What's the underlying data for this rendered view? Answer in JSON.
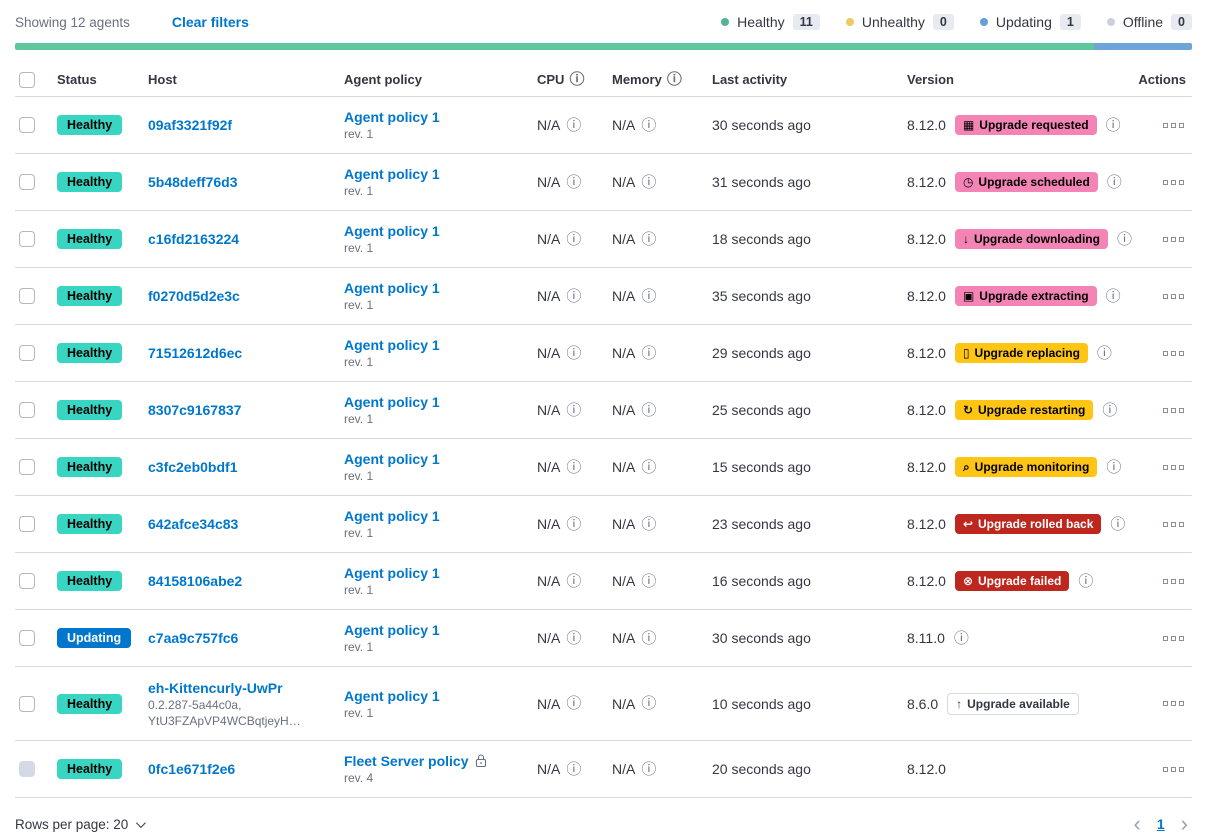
{
  "colors": {
    "accent": "#F584B6",
    "warning": "#FEC514",
    "danger": "#BD271E",
    "healthy": "#38D6C2",
    "updating": "#0077CC",
    "link": "#0077CC"
  },
  "toolbar": {
    "showing": "Showing 12 agents",
    "clear_filters": "Clear filters"
  },
  "legend": {
    "items": [
      {
        "label": "Healthy",
        "count": "11",
        "color": "#54B399"
      },
      {
        "label": "Unhealthy",
        "count": "0",
        "color": "#EDC964"
      },
      {
        "label": "Updating",
        "count": "1",
        "color": "#64A0D8"
      },
      {
        "label": "Offline",
        "count": "0",
        "color": "#CBD1DB"
      }
    ]
  },
  "health_bar": {
    "segments": [
      {
        "status": "healthy",
        "color": "#5EC79C",
        "percent": 91.7
      },
      {
        "status": "updating",
        "color": "#6EA5D8",
        "percent": 8.3
      }
    ]
  },
  "table": {
    "headers": [
      {
        "label": "",
        "type": "checkbox"
      },
      {
        "label": "Status"
      },
      {
        "label": "Host"
      },
      {
        "label": "Agent policy"
      },
      {
        "label": "CPU",
        "info": true
      },
      {
        "label": "Memory",
        "info": true
      },
      {
        "label": "Last activity"
      },
      {
        "label": "Version"
      },
      {
        "label": "Actions",
        "align": "right"
      }
    ],
    "rows": [
      {
        "status": "Healthy",
        "status_variant": "healthy",
        "host": "09af3321f92f",
        "host_sub": [],
        "policy": "Agent policy 1",
        "policy_rev": "rev. 1",
        "policy_locked": false,
        "cpu": "N/A",
        "memory": "N/A",
        "last_activity": "30 seconds ago",
        "version": "8.12.0",
        "upgrade": {
          "label": "Upgrade requested",
          "variant": "accent",
          "icon": "calendar-icon"
        },
        "version_info": true,
        "checkbox_disabled": false
      },
      {
        "status": "Healthy",
        "status_variant": "healthy",
        "host": "5b48deff76d3",
        "host_sub": [],
        "policy": "Agent policy 1",
        "policy_rev": "rev. 1",
        "policy_locked": false,
        "cpu": "N/A",
        "memory": "N/A",
        "last_activity": "31 seconds ago",
        "version": "8.12.0",
        "upgrade": {
          "label": "Upgrade scheduled",
          "variant": "accent",
          "icon": "clock-icon"
        },
        "version_info": true,
        "checkbox_disabled": false
      },
      {
        "status": "Healthy",
        "status_variant": "healthy",
        "host": "c16fd2163224",
        "host_sub": [],
        "policy": "Agent policy 1",
        "policy_rev": "rev. 1",
        "policy_locked": false,
        "cpu": "N/A",
        "memory": "N/A",
        "last_activity": "18 seconds ago",
        "version": "8.12.0",
        "upgrade": {
          "label": "Upgrade downloading",
          "variant": "accent",
          "icon": "download-icon"
        },
        "version_info": true,
        "checkbox_disabled": false
      },
      {
        "status": "Healthy",
        "status_variant": "healthy",
        "host": "f0270d5d2e3c",
        "host_sub": [],
        "policy": "Agent policy 1",
        "policy_rev": "rev. 1",
        "policy_locked": false,
        "cpu": "N/A",
        "memory": "N/A",
        "last_activity": "35 seconds ago",
        "version": "8.12.0",
        "upgrade": {
          "label": "Upgrade extracting",
          "variant": "accent",
          "icon": "package-icon"
        },
        "version_info": true,
        "checkbox_disabled": false
      },
      {
        "status": "Healthy",
        "status_variant": "healthy",
        "host": "71512612d6ec",
        "host_sub": [],
        "policy": "Agent policy 1",
        "policy_rev": "rev. 1",
        "policy_locked": false,
        "cpu": "N/A",
        "memory": "N/A",
        "last_activity": "29 seconds ago",
        "version": "8.12.0",
        "upgrade": {
          "label": "Upgrade replacing",
          "variant": "warning",
          "icon": "document-icon"
        },
        "version_info": true,
        "checkbox_disabled": false
      },
      {
        "status": "Healthy",
        "status_variant": "healthy",
        "host": "8307c9167837",
        "host_sub": [],
        "policy": "Agent policy 1",
        "policy_rev": "rev. 1",
        "policy_locked": false,
        "cpu": "N/A",
        "memory": "N/A",
        "last_activity": "25 seconds ago",
        "version": "8.12.0",
        "upgrade": {
          "label": "Upgrade restarting",
          "variant": "warning",
          "icon": "refresh-icon"
        },
        "version_info": true,
        "checkbox_disabled": false
      },
      {
        "status": "Healthy",
        "status_variant": "healthy",
        "host": "c3fc2eb0bdf1",
        "host_sub": [],
        "policy": "Agent policy 1",
        "policy_rev": "rev. 1",
        "policy_locked": false,
        "cpu": "N/A",
        "memory": "N/A",
        "last_activity": "15 seconds ago",
        "version": "8.12.0",
        "upgrade": {
          "label": "Upgrade monitoring",
          "variant": "warning",
          "icon": "inspect-icon"
        },
        "version_info": true,
        "checkbox_disabled": false
      },
      {
        "status": "Healthy",
        "status_variant": "healthy",
        "host": "642afce34c83",
        "host_sub": [],
        "policy": "Agent policy 1",
        "policy_rev": "rev. 1",
        "policy_locked": false,
        "cpu": "N/A",
        "memory": "N/A",
        "last_activity": "23 seconds ago",
        "version": "8.12.0",
        "upgrade": {
          "label": "Upgrade rolled back",
          "variant": "danger",
          "icon": "return-icon"
        },
        "version_info": true,
        "checkbox_disabled": false
      },
      {
        "status": "Healthy",
        "status_variant": "healthy",
        "host": "84158106abe2",
        "host_sub": [],
        "policy": "Agent policy 1",
        "policy_rev": "rev. 1",
        "policy_locked": false,
        "cpu": "N/A",
        "memory": "N/A",
        "last_activity": "16 seconds ago",
        "version": "8.12.0",
        "upgrade": {
          "label": "Upgrade failed",
          "variant": "danger",
          "icon": "error-icon"
        },
        "version_info": true,
        "checkbox_disabled": false
      },
      {
        "status": "Updating",
        "status_variant": "updating",
        "host": "c7aa9c757fc6",
        "host_sub": [],
        "policy": "Agent policy 1",
        "policy_rev": "rev. 1",
        "policy_locked": false,
        "cpu": "N/A",
        "memory": "N/A",
        "last_activity": "30 seconds ago",
        "version": "8.11.0",
        "upgrade": null,
        "version_info": true,
        "checkbox_disabled": false
      },
      {
        "status": "Healthy",
        "status_variant": "healthy",
        "host": "eh-Kittencurly-UwPr",
        "host_sub": [
          "0.2.287-5a44c0a,",
          "YtU3FZApVP4WCBqtjeyH…"
        ],
        "policy": "Agent policy 1",
        "policy_rev": "rev. 1",
        "policy_locked": false,
        "cpu": "N/A",
        "memory": "N/A",
        "last_activity": "10 seconds ago",
        "version": "8.6.0",
        "upgrade": {
          "label": "Upgrade available",
          "variant": "hollow",
          "icon": "arrow-up-icon"
        },
        "version_info": false,
        "checkbox_disabled": false
      },
      {
        "status": "Healthy",
        "status_variant": "healthy",
        "host": "0fc1e671f2e6",
        "host_sub": [],
        "policy": "Fleet Server policy",
        "policy_rev": "rev. 4",
        "policy_locked": true,
        "cpu": "N/A",
        "memory": "N/A",
        "last_activity": "20 seconds ago",
        "version": "8.12.0",
        "upgrade": null,
        "version_info": false,
        "checkbox_disabled": true
      }
    ]
  },
  "footer": {
    "rows_per_page": "Rows per page: 20",
    "page": "1",
    "prev": "‹",
    "next": "›"
  },
  "icons": {
    "info": "ⓘ",
    "calendar-icon": "▦",
    "clock-icon": "◷",
    "download-icon": "↓",
    "package-icon": "▣",
    "document-icon": "▯",
    "refresh-icon": "↻",
    "inspect-icon": "⌕",
    "return-icon": "↩",
    "error-icon": "⊗",
    "arrow-up-icon": "↑"
  }
}
